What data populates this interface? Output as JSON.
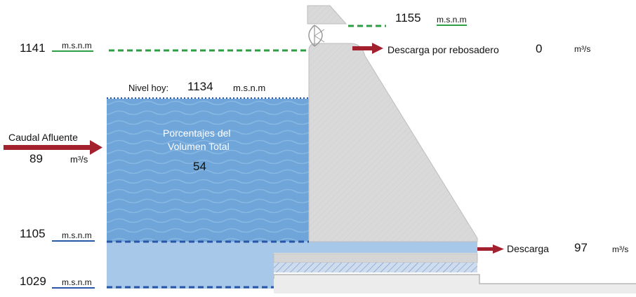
{
  "crest": {
    "elevation": "1155",
    "unit": "m.s.n.m"
  },
  "spillway_level": {
    "elevation": "1141",
    "unit": "m.s.n.m"
  },
  "spillway_discharge": {
    "label": "Descarga por rebosadero",
    "value": "0",
    "unit": "m³/s"
  },
  "current_level": {
    "label": "Nivel hoy:",
    "elevation": "1134",
    "unit": "m.s.n.m"
  },
  "inflow": {
    "label": "Caudal Afluente",
    "value": "89",
    "unit": "m³/s"
  },
  "volume": {
    "label_line1": "Porcentajes del",
    "label_line2": "Volumen Total",
    "value": "54"
  },
  "min_operating_level": {
    "elevation": "1105",
    "unit": "m.s.n.m"
  },
  "bottom_level": {
    "elevation": "1029",
    "unit": "m.s.n.m"
  },
  "outlet_discharge": {
    "label": "Descarga",
    "value": "97",
    "unit": "m³/s"
  },
  "colors": {
    "reservoir_water": "#6fa5d8",
    "dead_storage": "#a8c8ea",
    "dam_concrete": "#d9d9d9",
    "green_dashes": "#2e9e44",
    "blue_dashes": "#2a56a8",
    "arrow": "#a3202f"
  }
}
